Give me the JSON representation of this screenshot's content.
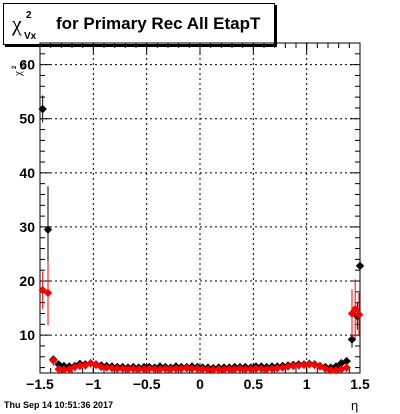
{
  "title": {
    "symbol_main": "χ",
    "symbol_sup": "2",
    "symbol_sub": "Vx",
    "text": "for Primary Rec All EtapT"
  },
  "timestamp": "Thu Sep 14 10:51:36 2017",
  "chart_data": {
    "type": "scatter",
    "xlabel": "η",
    "ylabel_main": "χ",
    "ylabel_sup": "2",
    "ylabel_sub": "Vx",
    "xlim": [
      -1.5,
      1.5
    ],
    "ylim": [
      3,
      64
    ],
    "x_ticks": [
      -1.5,
      -1,
      -0.5,
      0,
      0.5,
      1,
      1.5
    ],
    "x_tick_labels": [
      "−1.5",
      "−1",
      "−0.5",
      "0",
      "0.5",
      "1",
      "1.5"
    ],
    "y_ticks": [
      10,
      20,
      30,
      40,
      50,
      60
    ],
    "y_tick_labels": [
      "10",
      "20",
      "30",
      "40",
      "50",
      "60"
    ],
    "grid": true,
    "series": [
      {
        "color": "#000000",
        "points": [
          {
            "x": -1.475,
            "y": 51.8,
            "err": 2.5
          },
          {
            "x": -1.425,
            "y": 29.5,
            "err": 8.0
          },
          {
            "x": -1.375,
            "y": 5.5,
            "err": 0.5
          },
          {
            "x": -1.325,
            "y": 4.6,
            "err": 0.4
          },
          {
            "x": -1.275,
            "y": 4.3,
            "err": 0.3
          },
          {
            "x": -1.225,
            "y": 4.2,
            "err": 0.2
          },
          {
            "x": -1.175,
            "y": 4.3,
            "err": 0.2
          },
          {
            "x": -1.125,
            "y": 4.7,
            "err": 0.2
          },
          {
            "x": -1.075,
            "y": 4.6,
            "err": 0.2
          },
          {
            "x": -1.025,
            "y": 4.8,
            "err": 0.2
          },
          {
            "x": -0.975,
            "y": 4.6,
            "err": 0.2
          },
          {
            "x": -0.925,
            "y": 4.4,
            "err": 0.2
          },
          {
            "x": -0.875,
            "y": 4.3,
            "err": 0.2
          },
          {
            "x": -0.825,
            "y": 4.2,
            "err": 0.2
          },
          {
            "x": -0.775,
            "y": 4.1,
            "err": 0.2
          },
          {
            "x": -0.725,
            "y": 4.1,
            "err": 0.2
          },
          {
            "x": -0.675,
            "y": 4.0,
            "err": 0.2
          },
          {
            "x": -0.625,
            "y": 4.1,
            "err": 0.2
          },
          {
            "x": -0.575,
            "y": 4.0,
            "err": 0.2
          },
          {
            "x": -0.525,
            "y": 4.1,
            "err": 0.2
          },
          {
            "x": -0.475,
            "y": 4.1,
            "err": 0.2
          },
          {
            "x": -0.425,
            "y": 4.0,
            "err": 0.2
          },
          {
            "x": -0.375,
            "y": 4.2,
            "err": 0.2
          },
          {
            "x": -0.325,
            "y": 4.1,
            "err": 0.2
          },
          {
            "x": -0.275,
            "y": 4.0,
            "err": 0.2
          },
          {
            "x": -0.225,
            "y": 4.2,
            "err": 0.2
          },
          {
            "x": -0.175,
            "y": 4.1,
            "err": 0.2
          },
          {
            "x": -0.125,
            "y": 4.1,
            "err": 0.2
          },
          {
            "x": -0.075,
            "y": 4.2,
            "err": 0.2
          },
          {
            "x": -0.025,
            "y": 4.1,
            "err": 0.2
          },
          {
            "x": 0.025,
            "y": 4.0,
            "err": 0.2
          },
          {
            "x": 0.075,
            "y": 4.0,
            "err": 0.2
          },
          {
            "x": 0.125,
            "y": 3.9,
            "err": 0.2
          },
          {
            "x": 0.175,
            "y": 4.0,
            "err": 0.2
          },
          {
            "x": 0.225,
            "y": 4.0,
            "err": 0.2
          },
          {
            "x": 0.275,
            "y": 4.0,
            "err": 0.2
          },
          {
            "x": 0.325,
            "y": 4.1,
            "err": 0.2
          },
          {
            "x": 0.375,
            "y": 4.1,
            "err": 0.2
          },
          {
            "x": 0.425,
            "y": 4.1,
            "err": 0.2
          },
          {
            "x": 0.475,
            "y": 4.0,
            "err": 0.2
          },
          {
            "x": 0.525,
            "y": 4.2,
            "err": 0.2
          },
          {
            "x": 0.575,
            "y": 4.2,
            "err": 0.2
          },
          {
            "x": 0.625,
            "y": 4.1,
            "err": 0.2
          },
          {
            "x": 0.675,
            "y": 4.2,
            "err": 0.2
          },
          {
            "x": 0.725,
            "y": 4.2,
            "err": 0.2
          },
          {
            "x": 0.775,
            "y": 4.3,
            "err": 0.2
          },
          {
            "x": 0.825,
            "y": 4.4,
            "err": 0.2
          },
          {
            "x": 0.875,
            "y": 4.5,
            "err": 0.2
          },
          {
            "x": 0.925,
            "y": 4.6,
            "err": 0.2
          },
          {
            "x": 0.975,
            "y": 4.6,
            "err": 0.2
          },
          {
            "x": 1.025,
            "y": 4.7,
            "err": 0.2
          },
          {
            "x": 1.075,
            "y": 4.6,
            "err": 0.2
          },
          {
            "x": 1.125,
            "y": 4.3,
            "err": 0.2
          },
          {
            "x": 1.175,
            "y": 4.1,
            "err": 0.2
          },
          {
            "x": 1.225,
            "y": 4.0,
            "err": 0.3
          },
          {
            "x": 1.275,
            "y": 4.2,
            "err": 0.3
          },
          {
            "x": 1.325,
            "y": 4.8,
            "err": 0.4
          },
          {
            "x": 1.375,
            "y": 5.2,
            "err": 0.6
          },
          {
            "x": 1.425,
            "y": 9.2,
            "err": 1.5
          },
          {
            "x": 1.475,
            "y": 13.5,
            "err": 2.5
          },
          {
            "x": 1.5,
            "y": 22.8,
            "err": 2.5
          }
        ]
      },
      {
        "color": "#ff0000",
        "points": [
          {
            "x": -1.475,
            "y": 18.3,
            "err": 3.5
          },
          {
            "x": -1.425,
            "y": 17.8,
            "err": 6.0
          },
          {
            "x": -1.375,
            "y": 5.3,
            "err": 1.0
          },
          {
            "x": -1.325,
            "y": 3.7,
            "err": 0.6
          },
          {
            "x": -1.275,
            "y": 3.6,
            "err": 0.5
          },
          {
            "x": -1.225,
            "y": 3.7,
            "err": 0.4
          },
          {
            "x": -1.175,
            "y": 4.1,
            "err": 0.3
          },
          {
            "x": -1.125,
            "y": 4.3,
            "err": 0.3
          },
          {
            "x": -1.075,
            "y": 4.4,
            "err": 0.3
          },
          {
            "x": -1.025,
            "y": 4.8,
            "err": 0.3
          },
          {
            "x": -0.975,
            "y": 4.5,
            "err": 0.3
          },
          {
            "x": -0.925,
            "y": 4.1,
            "err": 0.3
          },
          {
            "x": -0.875,
            "y": 4.0,
            "err": 0.3
          },
          {
            "x": -0.825,
            "y": 3.9,
            "err": 0.3
          },
          {
            "x": -0.775,
            "y": 3.8,
            "err": 0.3
          },
          {
            "x": -0.725,
            "y": 3.8,
            "err": 0.3
          },
          {
            "x": -0.675,
            "y": 3.7,
            "err": 0.3
          },
          {
            "x": -0.625,
            "y": 3.8,
            "err": 0.3
          },
          {
            "x": -0.575,
            "y": 3.7,
            "err": 0.3
          },
          {
            "x": -0.525,
            "y": 3.7,
            "err": 0.3
          },
          {
            "x": -0.475,
            "y": 3.8,
            "err": 0.3
          },
          {
            "x": -0.425,
            "y": 3.7,
            "err": 0.3
          },
          {
            "x": -0.375,
            "y": 3.7,
            "err": 0.3
          },
          {
            "x": -0.325,
            "y": 3.8,
            "err": 0.3
          },
          {
            "x": -0.275,
            "y": 3.7,
            "err": 0.3
          },
          {
            "x": -0.225,
            "y": 3.8,
            "err": 0.3
          },
          {
            "x": -0.175,
            "y": 3.8,
            "err": 0.3
          },
          {
            "x": -0.125,
            "y": 3.9,
            "err": 0.3
          },
          {
            "x": -0.075,
            "y": 3.8,
            "err": 0.3
          },
          {
            "x": -0.025,
            "y": 3.8,
            "err": 0.3
          },
          {
            "x": 0.025,
            "y": 3.7,
            "err": 0.3
          },
          {
            "x": 0.075,
            "y": 3.6,
            "err": 0.3
          },
          {
            "x": 0.125,
            "y": 3.6,
            "err": 0.3
          },
          {
            "x": 0.175,
            "y": 3.7,
            "err": 0.3
          },
          {
            "x": 0.225,
            "y": 3.6,
            "err": 0.3
          },
          {
            "x": 0.275,
            "y": 3.7,
            "err": 0.3
          },
          {
            "x": 0.325,
            "y": 3.7,
            "err": 0.3
          },
          {
            "x": 0.375,
            "y": 3.8,
            "err": 0.3
          },
          {
            "x": 0.425,
            "y": 3.7,
            "err": 0.3
          },
          {
            "x": 0.475,
            "y": 3.7,
            "err": 0.3
          },
          {
            "x": 0.525,
            "y": 3.8,
            "err": 0.3
          },
          {
            "x": 0.575,
            "y": 3.8,
            "err": 0.3
          },
          {
            "x": 0.625,
            "y": 3.7,
            "err": 0.3
          },
          {
            "x": 0.675,
            "y": 3.8,
            "err": 0.3
          },
          {
            "x": 0.725,
            "y": 3.9,
            "err": 0.3
          },
          {
            "x": 0.775,
            "y": 4.0,
            "err": 0.3
          },
          {
            "x": 0.825,
            "y": 4.2,
            "err": 0.3
          },
          {
            "x": 0.875,
            "y": 4.3,
            "err": 0.3
          },
          {
            "x": 0.925,
            "y": 4.4,
            "err": 0.3
          },
          {
            "x": 0.975,
            "y": 4.5,
            "err": 0.3
          },
          {
            "x": 1.025,
            "y": 4.6,
            "err": 0.3
          },
          {
            "x": 1.075,
            "y": 4.5,
            "err": 0.3
          },
          {
            "x": 1.125,
            "y": 4.2,
            "err": 0.3
          },
          {
            "x": 1.175,
            "y": 3.8,
            "err": 0.4
          },
          {
            "x": 1.225,
            "y": 3.5,
            "err": 0.4
          },
          {
            "x": 1.275,
            "y": 3.5,
            "err": 0.5
          },
          {
            "x": 1.325,
            "y": 3.7,
            "err": 0.6
          },
          {
            "x": 1.375,
            "y": 4.0,
            "err": 0.8
          },
          {
            "x": 1.425,
            "y": 14.0,
            "err": 4.5
          },
          {
            "x": 1.455,
            "y": 14.8,
            "err": 5.5
          },
          {
            "x": 1.49,
            "y": 13.8,
            "err": 4.0
          }
        ]
      }
    ]
  }
}
